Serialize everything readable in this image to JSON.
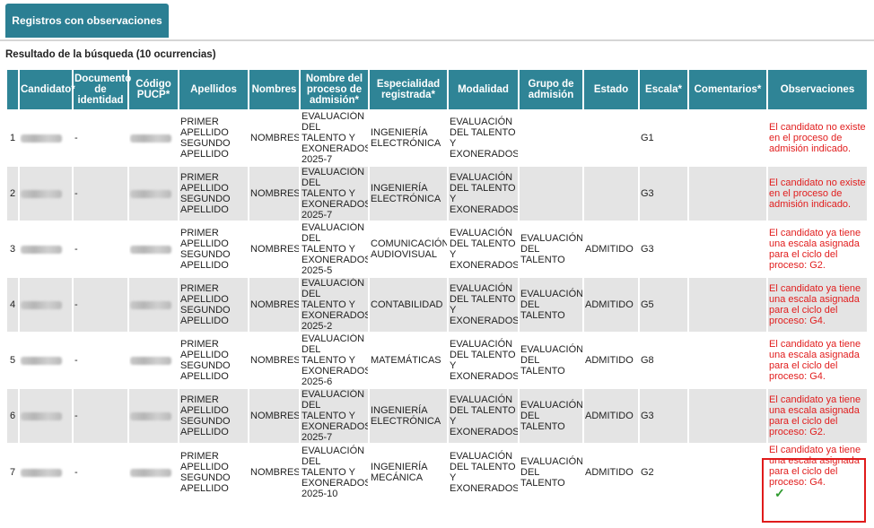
{
  "tab": {
    "label": "Registros con observaciones"
  },
  "result_title": "Resultado de la búsqueda (10 ocurrencias)",
  "columns": [
    "",
    "Candidato*",
    "Documento de identidad",
    "Código PUCP*",
    "Apellidos",
    "Nombres",
    "Nombre del proceso de admisión*",
    "Especialidad registrada*",
    "Modalidad",
    "Grupo de admisión",
    "Estado",
    "Escala*",
    "Comentarios*",
    "Observaciones"
  ],
  "rows": [
    {
      "num": "1",
      "doc": "-",
      "apellidos": "PRIMER APELLIDO SEGUNDO APELLIDO",
      "nombres": "NOMBRES",
      "proceso": "EVALUACIÓN DEL TALENTO Y EXONERADOS 2025-7",
      "especialidad": "INGENIERÍA ELECTRÓNICA",
      "modalidad": "EVALUACIÓN DEL TALENTO Y EXONERADOS",
      "grupo": "",
      "estado": "",
      "escala": "G1",
      "comentarios": "",
      "obs": "El candidato no existe en el proceso de admisión indicado."
    },
    {
      "num": "2",
      "doc": "-",
      "apellidos": "PRIMER APELLIDO SEGUNDO APELLIDO",
      "nombres": "NOMBRES",
      "proceso": "EVALUACIÓN DEL TALENTO Y EXONERADOS 2025-7",
      "especialidad": "INGENIERÍA ELECTRÓNICA",
      "modalidad": "EVALUACIÓN DEL TALENTO Y EXONERADOS",
      "grupo": "",
      "estado": "",
      "escala": "G3",
      "comentarios": "",
      "obs": "El candidato no existe en el proceso de admisión indicado."
    },
    {
      "num": "3",
      "doc": "-",
      "apellidos": "PRIMER APELLIDO SEGUNDO APELLIDO",
      "nombres": "NOMBRES",
      "proceso": "EVALUACIÓN DEL TALENTO Y EXONERADOS 2025-5",
      "especialidad": "COMUNICACIÓN AUDIOVISUAL",
      "modalidad": "EVALUACIÓN DEL TALENTO Y EXONERADOS",
      "grupo": "EVALUACIÓN DEL TALENTO",
      "estado": "ADMITIDO",
      "escala": "G3",
      "comentarios": "",
      "obs": "El candidato ya tiene una escala asignada para el ciclo del proceso: G2."
    },
    {
      "num": "4",
      "doc": "-",
      "apellidos": "PRIMER APELLIDO SEGUNDO APELLIDO",
      "nombres": "NOMBRES",
      "proceso": "EVALUACIÓN DEL TALENTO Y EXONERADOS 2025-2",
      "especialidad": "CONTABILIDAD",
      "modalidad": "EVALUACIÓN DEL TALENTO Y EXONERADOS",
      "grupo": "EVALUACIÓN DEL TALENTO",
      "estado": "ADMITIDO",
      "escala": "G5",
      "comentarios": "",
      "obs": "El candidato ya tiene una escala asignada para el ciclo del proceso: G4."
    },
    {
      "num": "5",
      "doc": "-",
      "apellidos": "PRIMER APELLIDO SEGUNDO APELLIDO",
      "nombres": "NOMBRES",
      "proceso": "EVALUACIÓN DEL TALENTO Y EXONERADOS 2025-6",
      "especialidad": "MATEMÁTICAS",
      "modalidad": "EVALUACIÓN DEL TALENTO Y EXONERADOS",
      "grupo": "EVALUACIÓN DEL TALENTO",
      "estado": "ADMITIDO",
      "escala": "G8",
      "comentarios": "",
      "obs": "El candidato ya tiene una escala asignada para el ciclo del proceso: G4."
    },
    {
      "num": "6",
      "doc": "-",
      "apellidos": "PRIMER APELLIDO SEGUNDO APELLIDO",
      "nombres": "NOMBRES",
      "proceso": "EVALUACIÓN DEL TALENTO Y EXONERADOS 2025-7",
      "especialidad": "INGENIERÍA ELECTRÓNICA",
      "modalidad": "EVALUACIÓN DEL TALENTO Y EXONERADOS",
      "grupo": "EVALUACIÓN DEL TALENTO",
      "estado": "ADMITIDO",
      "escala": "G3",
      "comentarios": "",
      "obs": "El candidato ya tiene una escala asignada para el ciclo del proceso: G2."
    },
    {
      "num": "7",
      "doc": "-",
      "apellidos": "PRIMER APELLIDO SEGUNDO APELLIDO",
      "nombres": "NOMBRES",
      "proceso": "EVALUACIÓN DEL TALENTO Y EXONERADOS 2025-10",
      "especialidad": "INGENIERÍA MECÁNICA",
      "modalidad": "EVALUACIÓN DEL TALENTO Y EXONERADOS",
      "grupo": "EVALUACIÓN DEL TALENTO",
      "estado": "ADMITIDO",
      "escala": "G2",
      "comentarios": "",
      "obs": "El candidato ya tiene una escala asignada para el ciclo del proceso: G4.",
      "check": "✓"
    }
  ],
  "colors": {
    "header": "#2f8496",
    "tab": "#2b7f93",
    "error": "#e11d1d",
    "highlight": "#e01b1b",
    "check": "#2e9a2e"
  },
  "icons": {
    "check": "checkmark-icon"
  }
}
